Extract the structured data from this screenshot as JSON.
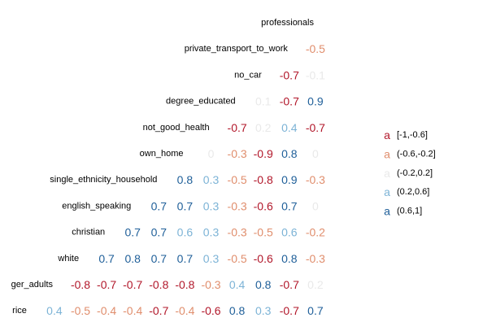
{
  "chart_data": {
    "type": "heatmap",
    "variables": [
      "professionals",
      "private_transport_to_work",
      "no_car",
      "degree_educated",
      "not_good_health",
      "own_home",
      "single_ethnicity_household",
      "english_speaking",
      "christian",
      "white",
      "ger_adults",
      "rice"
    ],
    "rows": [
      {
        "label": "professionals",
        "values": []
      },
      {
        "label": "private_transport_to_work",
        "values": [
          -0.5
        ]
      },
      {
        "label": "no_car",
        "values": [
          -0.7,
          -0.1
        ]
      },
      {
        "label": "degree_educated",
        "values": [
          0.1,
          -0.7,
          0.9
        ]
      },
      {
        "label": "not_good_health",
        "values": [
          -0.7,
          0.2,
          0.4,
          -0.7
        ]
      },
      {
        "label": "own_home",
        "values": [
          0,
          -0.3,
          -0.9,
          0.8,
          0
        ]
      },
      {
        "label": "single_ethnicity_household",
        "values": [
          0.8,
          0.3,
          -0.5,
          -0.8,
          0.9,
          -0.3
        ]
      },
      {
        "label": "english_speaking",
        "values": [
          0.7,
          0.7,
          0.3,
          -0.3,
          -0.6,
          0.7,
          0
        ]
      },
      {
        "label": "christian",
        "values": [
          0.7,
          0.7,
          0.6,
          0.3,
          -0.3,
          -0.5,
          0.6,
          -0.2
        ]
      },
      {
        "label": "white",
        "values": [
          0.7,
          0.8,
          0.7,
          0.7,
          0.3,
          -0.5,
          -0.6,
          0.8,
          -0.3
        ]
      },
      {
        "label": "ger_adults",
        "values": [
          -0.8,
          -0.7,
          -0.7,
          -0.8,
          -0.8,
          -0.3,
          0.4,
          0.8,
          -0.7,
          0.2
        ]
      },
      {
        "label": "rice",
        "values": [
          0.4,
          -0.5,
          -0.4,
          -0.4,
          -0.7,
          -0.4,
          -0.6,
          0.8,
          0.3,
          -0.7,
          0.7
        ]
      }
    ],
    "legend": {
      "placement": "right",
      "symbol": "a",
      "items": [
        {
          "label": "[-1,-0.6]",
          "color": "#b2182b"
        },
        {
          "label": "(-0.6,-0.2]",
          "color": "#e08e6d"
        },
        {
          "label": "(-0.2,0.2]",
          "color": "#e9e9e9"
        },
        {
          "label": "(0.2,0.6]",
          "color": "#7cb3d6"
        },
        {
          "label": "(0.6,1]",
          "color": "#1f5f99"
        }
      ]
    }
  }
}
